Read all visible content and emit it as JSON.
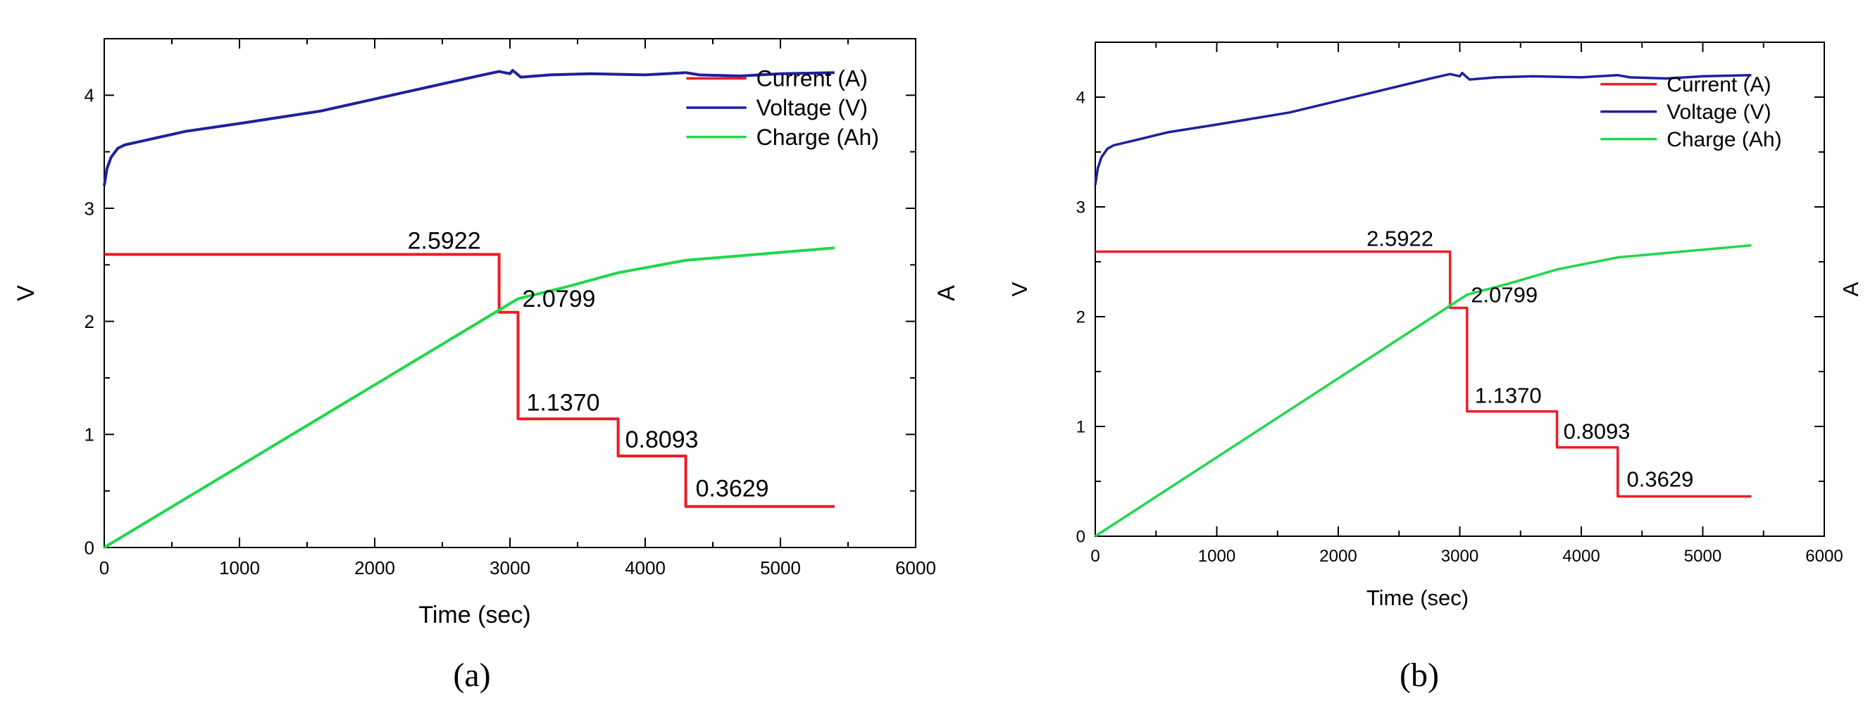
{
  "figure": {
    "panels": [
      "(a)",
      "(b)"
    ]
  },
  "colors": {
    "current": "#ee1c25",
    "voltage": "#1f1fa0",
    "charge": "#1fd84a"
  },
  "chart_data": [
    {
      "type": "line",
      "panel_label": "(a)",
      "xlabel": "Time (sec)",
      "ylabel_left": "V",
      "ylabel_right": "A",
      "xlim": [
        0,
        6000
      ],
      "ylim": [
        0,
        4.5
      ],
      "x_ticks": [
        "0",
        "1000",
        "2000",
        "3000",
        "4000",
        "5000",
        "6000"
      ],
      "y_ticks": [
        "0",
        "1",
        "2",
        "3",
        "4"
      ],
      "legend_position": "top-right",
      "series": [
        {
          "name": "Current (A)",
          "color": "#ee1c25",
          "x": [
            0,
            2920,
            2920,
            3060,
            3060,
            3800,
            3800,
            4300,
            4300,
            5400
          ],
          "y": [
            2.5922,
            2.5922,
            2.0799,
            2.0799,
            1.137,
            1.137,
            0.8093,
            0.8093,
            0.3629,
            0.3629
          ]
        },
        {
          "name": "Voltage (V)",
          "color": "#1f1fa0",
          "x": [
            0,
            20,
            50,
            100,
            150,
            300,
            600,
            1000,
            1600,
            2200,
            2800,
            2920,
            3000,
            3020,
            3080,
            3300,
            3600,
            4000,
            4300,
            4400,
            4700,
            5000,
            5400
          ],
          "y": [
            3.2,
            3.35,
            3.45,
            3.53,
            3.56,
            3.6,
            3.68,
            3.75,
            3.86,
            4.02,
            4.18,
            4.21,
            4.19,
            4.22,
            4.16,
            4.18,
            4.19,
            4.18,
            4.2,
            4.18,
            4.17,
            4.19,
            4.2
          ]
        },
        {
          "name": "Charge (Ah)",
          "color": "#1fd84a",
          "x": [
            0,
            2920,
            3060,
            3400,
            3800,
            4300,
            5400
          ],
          "y": [
            0,
            2.1,
            2.2,
            2.3,
            2.43,
            2.54,
            2.65
          ]
        }
      ],
      "annotations": [
        {
          "text": "2.5922",
          "x": 2920,
          "y": 2.5922
        },
        {
          "text": "2.0799",
          "x": 3060,
          "y": 2.0799
        },
        {
          "text": "1.1370",
          "x": 3060,
          "y": 1.137
        },
        {
          "text": "0.8093",
          "x": 3800,
          "y": 0.8093
        },
        {
          "text": "0.3629",
          "x": 4300,
          "y": 0.3629
        }
      ]
    },
    {
      "type": "line",
      "panel_label": "(b)",
      "xlabel": "Time (sec)",
      "ylabel_left": "V",
      "ylabel_right": "A",
      "xlim": [
        0,
        6000
      ],
      "ylim": [
        0,
        4.5
      ],
      "x_ticks": [
        "0",
        "1000",
        "2000",
        "3000",
        "4000",
        "5000",
        "6000"
      ],
      "y_ticks": [
        "0",
        "1",
        "2",
        "3",
        "4"
      ],
      "legend_position": "top-right",
      "series": [
        {
          "name": "Current (A)",
          "color": "#ee1c25",
          "x": [
            0,
            2920,
            2920,
            3060,
            3060,
            3800,
            3800,
            4300,
            4300,
            5400
          ],
          "y": [
            2.5922,
            2.5922,
            2.0799,
            2.0799,
            1.137,
            1.137,
            0.8093,
            0.8093,
            0.3629,
            0.3629
          ]
        },
        {
          "name": "Voltage (V)",
          "color": "#1f1fa0",
          "x": [
            0,
            20,
            50,
            100,
            150,
            300,
            600,
            1000,
            1600,
            2200,
            2800,
            2920,
            3000,
            3020,
            3080,
            3300,
            3600,
            4000,
            4300,
            4400,
            4700,
            5000,
            5400
          ],
          "y": [
            3.2,
            3.35,
            3.45,
            3.53,
            3.56,
            3.6,
            3.68,
            3.75,
            3.86,
            4.02,
            4.18,
            4.21,
            4.19,
            4.22,
            4.16,
            4.18,
            4.19,
            4.18,
            4.2,
            4.18,
            4.17,
            4.19,
            4.2
          ]
        },
        {
          "name": "Charge (Ah)",
          "color": "#1fd84a",
          "x": [
            0,
            2920,
            3060,
            3400,
            3800,
            4300,
            5400
          ],
          "y": [
            0,
            2.1,
            2.2,
            2.3,
            2.43,
            2.54,
            2.65
          ]
        }
      ],
      "annotations": [
        {
          "text": "2.5922",
          "x": 2920,
          "y": 2.5922
        },
        {
          "text": "2.0799",
          "x": 3060,
          "y": 2.0799
        },
        {
          "text": "1.1370",
          "x": 3060,
          "y": 1.137
        },
        {
          "text": "0.8093",
          "x": 3800,
          "y": 0.8093
        },
        {
          "text": "0.3629",
          "x": 4300,
          "y": 0.3629
        }
      ]
    }
  ]
}
